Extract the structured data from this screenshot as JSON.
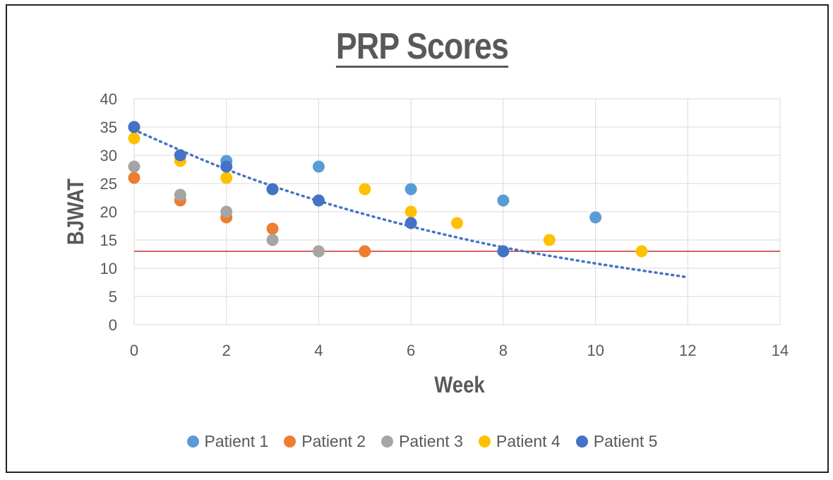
{
  "chart_data": {
    "type": "scatter",
    "title": "PRP Scores",
    "xlabel": "Week",
    "ylabel": "BJWAT",
    "xlim": [
      0,
      14
    ],
    "ylim": [
      0,
      40
    ],
    "xticks": [
      0,
      2,
      4,
      6,
      8,
      10,
      12,
      14
    ],
    "yticks": [
      0,
      5,
      10,
      15,
      20,
      25,
      30,
      35,
      40
    ],
    "grid": true,
    "legend_position": "bottom",
    "series": [
      {
        "name": "Patient 1",
        "color": "#5B9BD5",
        "points": [
          [
            0,
            35
          ],
          [
            1,
            30
          ],
          [
            2,
            29
          ],
          [
            3,
            24
          ],
          [
            4,
            28
          ],
          [
            6,
            24
          ],
          [
            8,
            22
          ],
          [
            10,
            19
          ]
        ]
      },
      {
        "name": "Patient 2",
        "color": "#ED7D31",
        "points": [
          [
            0,
            26
          ],
          [
            1,
            22
          ],
          [
            2,
            19
          ],
          [
            3,
            17
          ],
          [
            5,
            13
          ]
        ]
      },
      {
        "name": "Patient 3",
        "color": "#A5A5A5",
        "points": [
          [
            0,
            28
          ],
          [
            1,
            23
          ],
          [
            2,
            20
          ],
          [
            3,
            15
          ],
          [
            4,
            13
          ]
        ]
      },
      {
        "name": "Patient 4",
        "color": "#FFC000",
        "points": [
          [
            0,
            33
          ],
          [
            1,
            29
          ],
          [
            2,
            26
          ],
          [
            3,
            24
          ],
          [
            5,
            24
          ],
          [
            6,
            20
          ],
          [
            7,
            18
          ],
          [
            9,
            15
          ],
          [
            11,
            13
          ]
        ]
      },
      {
        "name": "Patient 5",
        "color": "#4472C4",
        "points": [
          [
            0,
            35
          ],
          [
            1,
            30
          ],
          [
            2,
            28
          ],
          [
            3,
            24
          ],
          [
            4,
            22
          ],
          [
            6,
            18
          ],
          [
            8,
            13
          ]
        ]
      }
    ],
    "reference_line": {
      "y": 13,
      "color": "#C00000"
    },
    "trendline": {
      "style": "dotted",
      "color": "#4472C4",
      "x_range": [
        0,
        12
      ],
      "points": [
        [
          0,
          34.5
        ],
        [
          2,
          27.3
        ],
        [
          4,
          21.8
        ],
        [
          6,
          17.3
        ],
        [
          8,
          13.6
        ],
        [
          10,
          10.8
        ],
        [
          12,
          8.4
        ]
      ]
    }
  }
}
